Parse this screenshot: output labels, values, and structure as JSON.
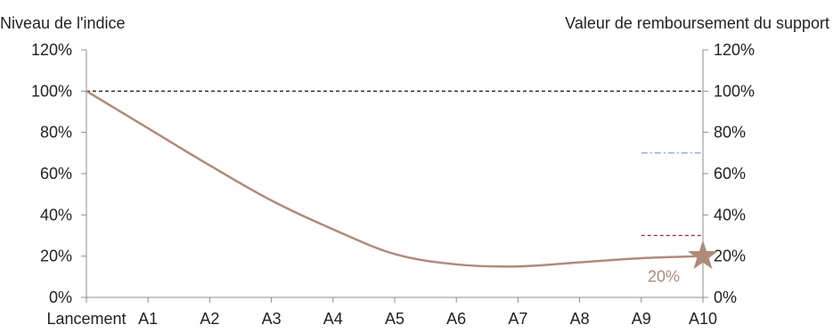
{
  "chart_data": {
    "type": "line",
    "ylabel_left": "Niveau de l'indice",
    "ylabel_right": "Valeur de remboursement du support",
    "categories": [
      "Lancement",
      "A1",
      "A2",
      "A3",
      "A4",
      "A5",
      "A6",
      "A7",
      "A8",
      "A9",
      "A10"
    ],
    "ylim": [
      0,
      120
    ],
    "y_ticks": [
      "0%",
      "20%",
      "40%",
      "60%",
      "80%",
      "100%",
      "120%"
    ],
    "grid": false,
    "series": [
      {
        "values": [
          100,
          82,
          64,
          47,
          33,
          21,
          16,
          15,
          17,
          19,
          20
        ],
        "color": "#b08a7a"
      }
    ],
    "reference_lines": [
      {
        "y": 100,
        "from": "Lancement",
        "to": "A10",
        "style": "dashed",
        "color": "#000000"
      },
      {
        "y": 70,
        "from": "A9",
        "to": "A10",
        "style": "dash-dot",
        "color": "#6f9ad0"
      },
      {
        "y": 30,
        "from": "A9",
        "to": "A10",
        "style": "dashed",
        "color": "#a02a2a"
      }
    ],
    "final_marker": {
      "category": "A10",
      "value": 20,
      "label": "20%",
      "shape": "star-icon",
      "color": "#b08a7a"
    }
  }
}
